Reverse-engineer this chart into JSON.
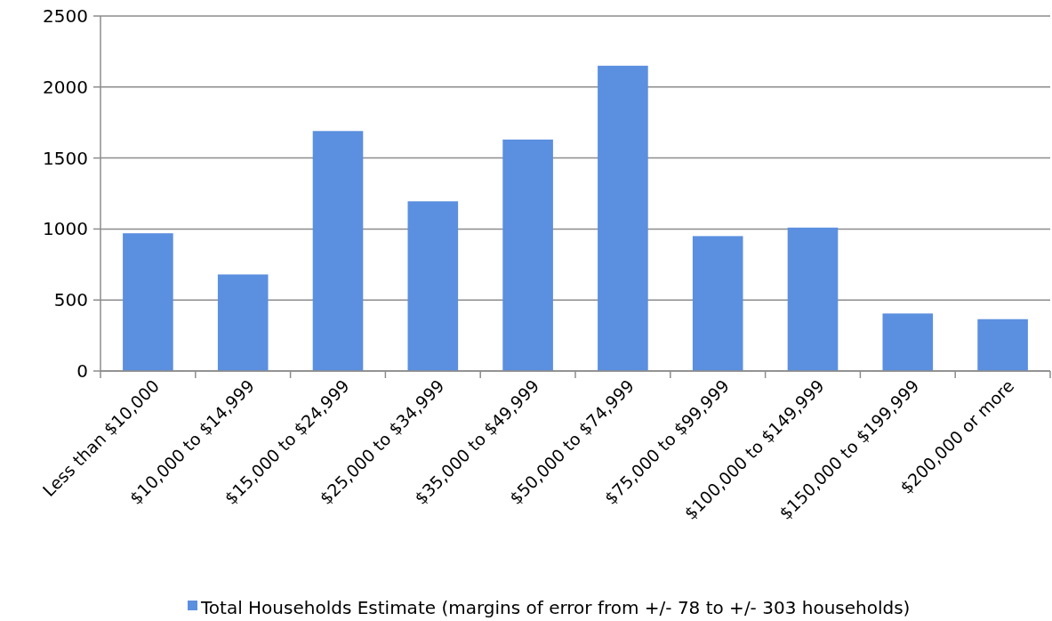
{
  "chart_data": {
    "type": "bar",
    "categories": [
      "Less than $10,000",
      "$10,000 to $14,999",
      "$15,000 to $24,999",
      "$25,000 to $34,999",
      "$35,000 to $49,999",
      "$50,000 to $74,999",
      "$75,000 to $99,999",
      "$100,000 to $149,999",
      "$150,000 to $199,999",
      "$200,000 or more"
    ],
    "series": [
      {
        "name": "Total Households Estimate (margins of error from +/- 78 to +/- 303 households)",
        "color": "#5b8fdf",
        "values": [
          970,
          680,
          1690,
          1195,
          1630,
          2150,
          950,
          1010,
          405,
          365
        ]
      }
    ],
    "ylim": [
      0,
      2500
    ],
    "yticks": [
      0,
      500,
      1000,
      1500,
      2000,
      2500
    ],
    "grid": "y",
    "legend": "bottom"
  }
}
